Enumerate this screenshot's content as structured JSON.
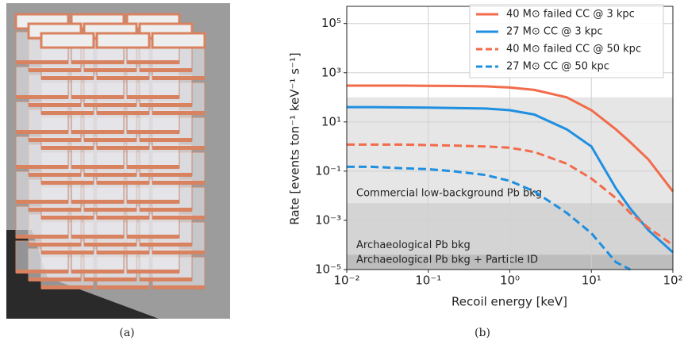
{
  "chart_data": {
    "type": "line",
    "xscale": "log",
    "yscale": "log",
    "grid": true,
    "xlabel": "Recoil energy [keV]",
    "ylabel": "Rate [events ton⁻¹ keV⁻¹ s⁻¹]",
    "xlim": [
      0.01,
      100
    ],
    "ylim": [
      1e-05,
      500000
    ],
    "xticks": [
      {
        "value": 0.01,
        "label": "10⁻²"
      },
      {
        "value": 0.1,
        "label": "10⁻¹"
      },
      {
        "value": 1,
        "label": "10⁰"
      },
      {
        "value": 10,
        "label": "10¹"
      },
      {
        "value": 100,
        "label": "10²"
      }
    ],
    "yticks": [
      {
        "value": 1e-05,
        "label": "10⁻⁵"
      },
      {
        "value": 0.001,
        "label": "10⁻³"
      },
      {
        "value": 0.1,
        "label": "10⁻¹"
      },
      {
        "value": 10,
        "label": "10¹"
      },
      {
        "value": 1000,
        "label": "10³"
      },
      {
        "value": 100000,
        "label": "10⁵"
      }
    ],
    "legend": "upper right",
    "x": [
      0.01,
      0.02,
      0.05,
      0.1,
      0.2,
      0.5,
      1,
      2,
      5,
      10,
      20,
      30,
      50,
      100
    ],
    "series": [
      {
        "name": "40 M⊙ failed CC @ 3 kpc",
        "color": "#f26b4b",
        "dash": false,
        "values": [
          300,
          300,
          300,
          295,
          290,
          280,
          250,
          200,
          100,
          30,
          5,
          1.5,
          0.3,
          0.015
        ]
      },
      {
        "name": "27 M⊙ CC @ 3 kpc",
        "color": "#1f8fe0",
        "dash": false,
        "values": [
          40,
          40,
          39,
          38,
          37,
          35,
          30,
          20,
          5,
          1,
          0.02,
          0.003,
          0.0004,
          5e-05
        ]
      },
      {
        "name": "40 M⊙ failed CC @ 50 kpc",
        "color": "#f26b4b",
        "dash": true,
        "values": [
          1.2,
          1.2,
          1.2,
          1.15,
          1.1,
          1.0,
          0.9,
          0.6,
          0.2,
          0.05,
          0.008,
          0.002,
          0.0005,
          0.0001
        ]
      },
      {
        "name": "27 M⊙ CC @ 50 kpc",
        "color": "#1f8fe0",
        "dash": true,
        "values": [
          0.15,
          0.15,
          0.13,
          0.12,
          0.1,
          0.07,
          0.04,
          0.015,
          0.002,
          0.0003,
          2e-05,
          1e-05,
          null,
          null
        ]
      }
    ],
    "bands": [
      {
        "label": "Commercial low-background Pb bkg",
        "value": 100,
        "color": "#e6e6e6"
      },
      {
        "label": "Archaeological Pb bkg",
        "value": 0.005,
        "color": "#d4d4d4"
      },
      {
        "label": "Archaeological Pb bkg + Particle ID",
        "value": 4e-05,
        "color": "#bdbdbd"
      }
    ]
  },
  "captions": [
    "(a)",
    "(b)"
  ]
}
